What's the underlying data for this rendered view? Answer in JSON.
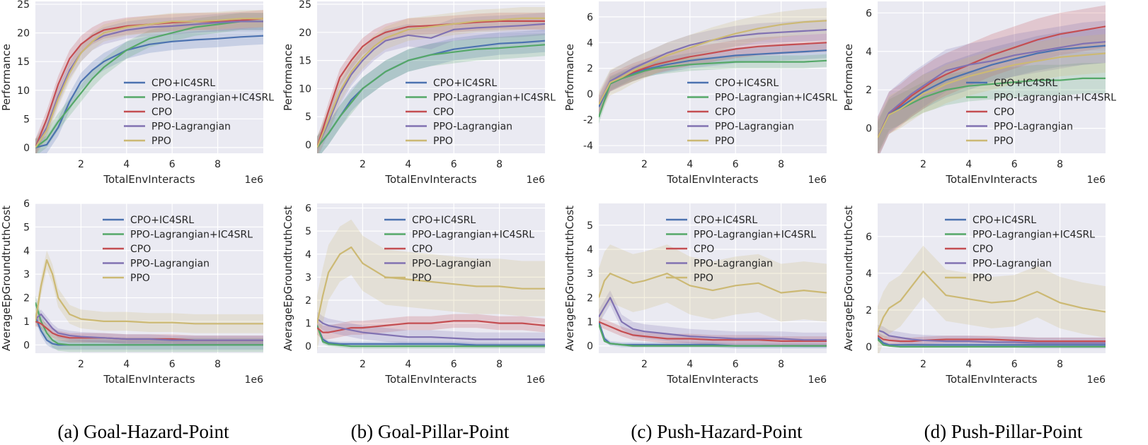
{
  "colors": {
    "panel_bg": "#EAEAF2",
    "grid": "#FFFFFF",
    "CPO+IC4SRL": "#4C72B0",
    "PPO-Lagrangian+IC4SRL": "#55A868",
    "CPO": "#C44E52",
    "PPO-Lagrangian": "#8172B2",
    "PPO": "#CCB974"
  },
  "captions": [
    "(a) Goal-Hazard-Point",
    "(b) Goal-Pillar-Point",
    "(c) Push-Hazard-Point",
    "(d) Push-Pillar-Point"
  ],
  "chart_data": [
    {
      "type": "line",
      "panel": "Goal-Hazard-Point performance",
      "xlabel": "TotalEnvInteracts",
      "x_multiplier": "1e6",
      "ylabel": "Performance",
      "xlim": [
        0,
        10
      ],
      "ylim": [
        -1,
        25.5
      ],
      "xticks": [
        2,
        4,
        6,
        8
      ],
      "yticks": [
        0,
        5,
        10,
        15,
        20,
        25
      ],
      "legend": "center-right",
      "x": [
        0,
        0.5,
        1,
        1.5,
        2,
        2.5,
        3,
        4,
        5,
        6,
        7,
        8,
        9,
        10
      ],
      "series": [
        {
          "name": "CPO+IC4SRL",
          "values": [
            0,
            0.5,
            3.5,
            8,
            11.5,
            13.5,
            15,
            17,
            18,
            18.5,
            18.8,
            19,
            19.3,
            19.5
          ],
          "band": 1.5
        },
        {
          "name": "PPO-Lagrangian+IC4SRL",
          "values": [
            0,
            1.5,
            4.5,
            7,
            9.5,
            12,
            14,
            17,
            19,
            20,
            21,
            21.5,
            22,
            22
          ],
          "band": 1.5
        },
        {
          "name": "CPO",
          "values": [
            0,
            5,
            11,
            15.5,
            18,
            19.5,
            20.5,
            21.2,
            21.5,
            21.8,
            22,
            22,
            22.2,
            22.5
          ],
          "band": 1.5
        },
        {
          "name": "PPO-Lagrangian",
          "values": [
            0,
            3.5,
            9,
            13.5,
            16.5,
            18.5,
            19.5,
            20.5,
            21,
            21.2,
            21.5,
            21.8,
            22,
            22
          ],
          "band": 1.5
        },
        {
          "name": "PPO",
          "values": [
            0,
            3,
            8.5,
            13,
            16.5,
            18.5,
            20,
            21,
            21.5,
            22,
            22,
            22.2,
            22.5,
            22.5
          ],
          "band": 1.5
        }
      ]
    },
    {
      "type": "line",
      "panel": "Goal-Pillar-Point performance",
      "xlabel": "TotalEnvInteracts",
      "x_multiplier": "1e6",
      "ylabel": "Performance",
      "xlim": [
        0,
        10
      ],
      "ylim": [
        -1.5,
        25.5
      ],
      "xticks": [
        2,
        4,
        6,
        8
      ],
      "yticks": [
        0,
        5,
        10,
        15,
        20,
        25
      ],
      "legend": "center-right",
      "x": [
        0,
        0.5,
        1,
        1.5,
        2,
        2.5,
        3,
        4,
        5,
        6,
        7,
        8,
        9,
        10
      ],
      "series": [
        {
          "name": "CPO+IC4SRL",
          "values": [
            -0.5,
            2,
            5,
            8,
            10,
            11.5,
            13,
            15,
            16,
            17,
            17.5,
            18,
            18.2,
            18.5
          ],
          "band": 2
        },
        {
          "name": "PPO-Lagrangian+IC4SRL",
          "values": [
            -0.5,
            2,
            5,
            7.5,
            10,
            11.5,
            13,
            15,
            16,
            16.5,
            17,
            17.2,
            17.5,
            17.8
          ],
          "band": 2
        },
        {
          "name": "CPO",
          "values": [
            -0.5,
            6,
            12,
            15,
            17.5,
            19,
            20,
            21,
            21.2,
            21.5,
            21.8,
            22,
            22,
            22
          ],
          "band": 1.5
        },
        {
          "name": "PPO-Lagrangian",
          "values": [
            -0.5,
            4,
            9,
            12.5,
            15,
            17,
            18.5,
            19.5,
            19,
            20.5,
            20.8,
            21,
            21.2,
            21.5
          ],
          "band": 2
        },
        {
          "name": "PPO",
          "values": [
            -0.5,
            4.5,
            9.5,
            13,
            15.5,
            17.5,
            19,
            20.5,
            21,
            21.5,
            22,
            22.2,
            22.5,
            22.5
          ],
          "band": 2
        }
      ]
    },
    {
      "type": "line",
      "panel": "Push-Hazard-Point performance",
      "xlabel": "TotalEnvInteracts",
      "x_multiplier": "1e6",
      "ylabel": "Performance",
      "xlim": [
        0,
        10
      ],
      "ylim": [
        -4.6,
        7.2
      ],
      "xticks": [
        2,
        4,
        6,
        8
      ],
      "yticks": [
        -4,
        -2,
        0,
        2,
        4,
        6
      ],
      "legend": "center-right",
      "x": [
        0,
        0.5,
        1,
        1.5,
        2,
        2.5,
        3,
        4,
        5,
        6,
        7,
        8,
        9,
        10
      ],
      "series": [
        {
          "name": "CPO+IC4SRL",
          "values": [
            -1,
            0.8,
            1.2,
            1.6,
            1.9,
            2.1,
            2.3,
            2.6,
            2.8,
            3,
            3.1,
            3.2,
            3.3,
            3.4
          ],
          "band": 0.6
        },
        {
          "name": "PPO-Lagrangian+IC4SRL",
          "values": [
            -1.8,
            0.8,
            1.2,
            1.5,
            1.8,
            2,
            2.1,
            2.3,
            2.4,
            2.5,
            2.5,
            2.5,
            2.5,
            2.6
          ],
          "band": 0.5
        },
        {
          "name": "CPO",
          "values": [
            -0.8,
            0.9,
            1.3,
            1.7,
            2,
            2.3,
            2.5,
            2.9,
            3.2,
            3.5,
            3.7,
            3.8,
            3.9,
            4
          ],
          "band": 0.7
        },
        {
          "name": "PPO-Lagrangian",
          "values": [
            -0.8,
            1,
            1.5,
            2,
            2.4,
            2.8,
            3.2,
            3.8,
            4.2,
            4.5,
            4.7,
            4.8,
            4.9,
            5
          ],
          "band": 0.8
        },
        {
          "name": "PPO",
          "values": [
            -0.8,
            0.9,
            1.3,
            1.8,
            2.2,
            2.6,
            3,
            3.6,
            4.2,
            4.7,
            5.1,
            5.4,
            5.6,
            5.7
          ],
          "band": 1
        }
      ]
    },
    {
      "type": "line",
      "panel": "Push-Pillar-Point performance",
      "xlabel": "TotalEnvInteracts",
      "x_multiplier": "1e6",
      "ylabel": "Performance",
      "xlim": [
        0,
        10
      ],
      "ylim": [
        -1.3,
        6.6
      ],
      "xticks": [
        2,
        4,
        6,
        8
      ],
      "yticks": [
        0,
        2,
        4,
        6
      ],
      "legend": "center-right",
      "x": [
        0,
        0.5,
        1,
        1.5,
        2,
        2.5,
        3,
        4,
        5,
        6,
        7,
        8,
        9,
        10
      ],
      "series": [
        {
          "name": "CPO+IC4SRL",
          "values": [
            -0.5,
            0.7,
            1.1,
            1.5,
            1.9,
            2.2,
            2.5,
            2.9,
            3.3,
            3.6,
            3.9,
            4.1,
            4.2,
            4.3
          ],
          "band": 0.9
        },
        {
          "name": "PPO-Lagrangian+IC4SRL",
          "values": [
            -0.5,
            0.7,
            1,
            1.3,
            1.6,
            1.8,
            2,
            2.2,
            2.3,
            2.4,
            2.5,
            2.5,
            2.6,
            2.6
          ],
          "band": 0.8
        },
        {
          "name": "CPO",
          "values": [
            -0.5,
            0.8,
            1.2,
            1.7,
            2.1,
            2.5,
            2.8,
            3.3,
            3.8,
            4.2,
            4.6,
            4.9,
            5.1,
            5.3
          ],
          "band": 1.1
        },
        {
          "name": "PPO-Lagrangian",
          "values": [
            -0.5,
            0.8,
            1.3,
            1.8,
            2.2,
            2.6,
            3,
            3.3,
            3.5,
            3.8,
            4,
            4.2,
            4.4,
            4.5
          ],
          "band": 1.1
        },
        {
          "name": "PPO",
          "values": [
            -0.5,
            0.7,
            1,
            1.4,
            1.8,
            2,
            2.3,
            2.7,
            3,
            3.3,
            3.5,
            3.7,
            3.8,
            3.9
          ],
          "band": 1
        }
      ]
    },
    {
      "type": "line",
      "panel": "Goal-Hazard-Point cost",
      "xlabel": "TotalEnvInteracts",
      "x_multiplier": "1e6",
      "ylabel": "AverageEpGroundtruthCost",
      "xlim": [
        0,
        10
      ],
      "ylim": [
        -0.35,
        6
      ],
      "xticks": [
        2,
        4,
        6,
        8
      ],
      "yticks": [
        0,
        1,
        2,
        3,
        4,
        5,
        6
      ],
      "legend": "upper-center",
      "x": [
        0,
        0.25,
        0.5,
        0.75,
        1,
        1.5,
        2,
        3,
        4,
        5,
        6,
        7,
        8,
        9,
        10
      ],
      "series": [
        {
          "name": "CPO+IC4SRL",
          "values": [
            1.2,
            0.6,
            0.2,
            0.05,
            0,
            0,
            0,
            0,
            0,
            0,
            0,
            0,
            0,
            0,
            0
          ],
          "band": 0.2
        },
        {
          "name": "PPO-Lagrangian+IC4SRL",
          "values": [
            1.8,
            1.0,
            0.5,
            0.2,
            0.05,
            0,
            0,
            0,
            0,
            0,
            0,
            0,
            0,
            0,
            0
          ],
          "band": 0.3
        },
        {
          "name": "CPO",
          "values": [
            1.0,
            0.9,
            0.7,
            0.5,
            0.4,
            0.3,
            0.3,
            0.3,
            0.25,
            0.25,
            0.25,
            0.2,
            0.2,
            0.2,
            0.2
          ],
          "band": 0.2
        },
        {
          "name": "PPO-Lagrangian",
          "values": [
            1.1,
            1.3,
            1.0,
            0.7,
            0.5,
            0.4,
            0.35,
            0.3,
            0.25,
            0.25,
            0.2,
            0.2,
            0.2,
            0.2,
            0.2
          ],
          "band": 0.2
        },
        {
          "name": "PPO",
          "values": [
            1.0,
            2.5,
            3.6,
            3.0,
            2.0,
            1.3,
            1.1,
            1.0,
            1.0,
            0.95,
            0.95,
            0.9,
            0.9,
            0.9,
            0.9
          ],
          "band": 0.4
        }
      ]
    },
    {
      "type": "line",
      "panel": "Goal-Pillar-Point cost",
      "xlabel": "TotalEnvInteracts",
      "x_multiplier": "1e6",
      "ylabel": "AverageEpGroundtruthCost",
      "xlim": [
        0,
        10
      ],
      "ylim": [
        -0.3,
        6.2
      ],
      "xticks": [
        2,
        4,
        6,
        8
      ],
      "yticks": [
        0,
        1,
        2,
        3,
        4,
        5,
        6
      ],
      "legend": "upper-center",
      "x": [
        0,
        0.25,
        0.5,
        1,
        1.5,
        2,
        3,
        4,
        5,
        6,
        7,
        8,
        9,
        10
      ],
      "series": [
        {
          "name": "CPO+IC4SRL",
          "values": [
            0.9,
            0.3,
            0.15,
            0.1,
            0.1,
            0.1,
            0.1,
            0.1,
            0.1,
            0.1,
            0.05,
            0.05,
            0.05,
            0.05
          ],
          "band": 0.1
        },
        {
          "name": "PPO-Lagrangian+IC4SRL",
          "values": [
            0.9,
            0.2,
            0.1,
            0.05,
            0,
            0,
            0,
            0,
            0,
            0,
            0,
            0,
            0,
            0
          ],
          "band": 0.1
        },
        {
          "name": "CPO",
          "values": [
            0.8,
            0.6,
            0.6,
            0.7,
            0.8,
            0.8,
            0.9,
            1.0,
            1.0,
            1.1,
            1.1,
            1.0,
            1.0,
            0.9
          ],
          "band": 0.3
        },
        {
          "name": "PPO-Lagrangian",
          "values": [
            1.2,
            1.0,
            0.9,
            0.8,
            0.7,
            0.6,
            0.5,
            0.4,
            0.4,
            0.35,
            0.3,
            0.3,
            0.3,
            0.3
          ],
          "band": 0.3
        },
        {
          "name": "PPO",
          "values": [
            1.0,
            2.2,
            3.2,
            4.0,
            4.3,
            3.6,
            3.0,
            2.9,
            2.8,
            2.7,
            2.6,
            2.6,
            2.5,
            2.5
          ],
          "band": 1.2
        }
      ]
    },
    {
      "type": "line",
      "panel": "Push-Hazard-Point cost",
      "xlabel": "TotalEnvInteracts",
      "x_multiplier": "1e6",
      "ylabel": "AverageEpGroundtruthCost",
      "xlim": [
        0,
        10
      ],
      "ylim": [
        -0.3,
        5.9
      ],
      "xticks": [
        2,
        4,
        6,
        8
      ],
      "yticks": [
        0,
        1,
        2,
        3,
        4,
        5
      ],
      "legend": "upper-center",
      "x": [
        0,
        0.25,
        0.5,
        1,
        1.5,
        2,
        3,
        4,
        5,
        6,
        7,
        8,
        9,
        10
      ],
      "series": [
        {
          "name": "CPO+IC4SRL",
          "values": [
            1.0,
            0.3,
            0.1,
            0.05,
            0.05,
            0.05,
            0.05,
            0.05,
            0.05,
            0,
            0,
            0,
            0,
            0
          ],
          "band": 0.1
        },
        {
          "name": "PPO-Lagrangian+IC4SRL",
          "values": [
            0.9,
            0.2,
            0.1,
            0.05,
            0,
            0,
            0,
            0,
            0,
            0,
            0,
            0,
            0,
            0
          ],
          "band": 0.05
        },
        {
          "name": "CPO",
          "values": [
            1.0,
            0.9,
            0.8,
            0.6,
            0.45,
            0.4,
            0.3,
            0.3,
            0.25,
            0.25,
            0.25,
            0.2,
            0.2,
            0.2
          ],
          "band": 0.2
        },
        {
          "name": "PPO-Lagrangian",
          "values": [
            1.2,
            1.6,
            2.0,
            1.0,
            0.7,
            0.6,
            0.5,
            0.4,
            0.35,
            0.3,
            0.3,
            0.3,
            0.25,
            0.25
          ],
          "band": 0.3
        },
        {
          "name": "PPO",
          "values": [
            2.0,
            2.7,
            3.0,
            2.8,
            2.6,
            2.7,
            3.0,
            2.5,
            2.3,
            2.5,
            2.6,
            2.2,
            2.3,
            2.2
          ],
          "band": 1.2
        }
      ]
    },
    {
      "type": "line",
      "panel": "Push-Pillar-Point cost",
      "xlabel": "TotalEnvInteracts",
      "x_multiplier": "1e6",
      "ylabel": "AverageEpGroundtruthCost",
      "xlim": [
        0,
        10
      ],
      "ylim": [
        -0.35,
        7.8
      ],
      "xticks": [
        2,
        4,
        6,
        8
      ],
      "yticks": [
        0,
        2,
        4,
        6
      ],
      "legend": "upper-center",
      "x": [
        0,
        0.25,
        0.5,
        1,
        1.5,
        2,
        3,
        4,
        5,
        6,
        7,
        8,
        9,
        10
      ],
      "series": [
        {
          "name": "CPO+IC4SRL",
          "values": [
            0.5,
            0.2,
            0.1,
            0.1,
            0.1,
            0.1,
            0.1,
            0.1,
            0.1,
            0.1,
            0.1,
            0.1,
            0.1,
            0.1
          ],
          "band": 0.1
        },
        {
          "name": "PPO-Lagrangian+IC4SRL",
          "values": [
            0.4,
            0.1,
            0.05,
            0,
            0,
            0,
            0,
            0,
            0,
            0,
            0,
            0,
            0,
            0
          ],
          "band": 0.05
        },
        {
          "name": "CPO",
          "values": [
            0.6,
            0.4,
            0.35,
            0.3,
            0.3,
            0.35,
            0.4,
            0.4,
            0.4,
            0.35,
            0.3,
            0.3,
            0.3,
            0.3
          ],
          "band": 0.2
        },
        {
          "name": "PPO-Lagrangian",
          "values": [
            0.9,
            0.8,
            0.6,
            0.5,
            0.4,
            0.35,
            0.3,
            0.3,
            0.25,
            0.25,
            0.2,
            0.2,
            0.2,
            0.2
          ],
          "band": 0.3
        },
        {
          "name": "PPO",
          "values": [
            0.8,
            1.6,
            2.1,
            2.5,
            3.3,
            4.1,
            2.8,
            2.6,
            2.4,
            2.5,
            3.0,
            2.4,
            2.1,
            1.9
          ],
          "band": 1.4
        }
      ]
    }
  ]
}
